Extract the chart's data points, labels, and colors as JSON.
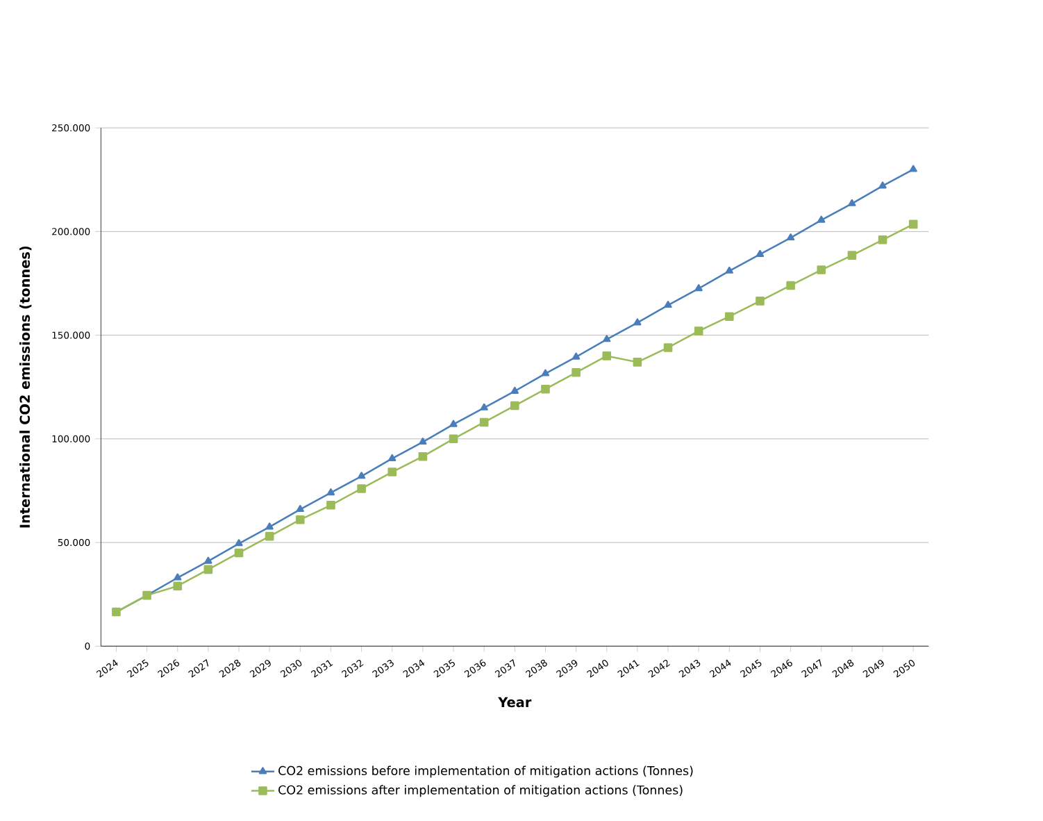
{
  "chart_data": {
    "type": "line",
    "xlabel": "Year",
    "ylabel": "International CO2 emissions (tonnes)",
    "categories": [
      "2024",
      "2025",
      "2026",
      "2027",
      "2028",
      "2029",
      "2030",
      "2031",
      "2032",
      "2033",
      "2034",
      "2035",
      "2036",
      "2037",
      "2038",
      "2039",
      "2040",
      "2041",
      "2042",
      "2043",
      "2044",
      "2045",
      "2046",
      "2047",
      "2048",
      "2049",
      "2050"
    ],
    "series": [
      {
        "name": "CO2 emissions before implementation of mitigation actions (Tonnes)",
        "color": "#4a7ebb",
        "marker": "triangle",
        "values": [
          16500,
          24500,
          33000,
          41000,
          49500,
          57500,
          66000,
          74000,
          82000,
          90500,
          98500,
          107000,
          115000,
          123000,
          131500,
          139500,
          148000,
          156000,
          164500,
          172500,
          181000,
          189000,
          197000,
          205500,
          213500,
          222000,
          230000
        ]
      },
      {
        "name": "CO2 emissions after implementation of mitigation actions (Tonnes)",
        "color": "#9bbb59",
        "marker": "square",
        "values": [
          16500,
          24500,
          29000,
          37000,
          45000,
          53000,
          61000,
          68000,
          76000,
          84000,
          91500,
          100000,
          108000,
          116000,
          124000,
          132000,
          140000,
          137000,
          144000,
          152000,
          159000,
          166500,
          174000,
          181500,
          188500,
          196000,
          203500
        ]
      }
    ],
    "ylim": [
      0,
      250000
    ],
    "yticks": [
      {
        "value": 0,
        "label": "0"
      },
      {
        "value": 50000,
        "label": "50.000"
      },
      {
        "value": 100000,
        "label": "100.000"
      },
      {
        "value": 150000,
        "label": "150.000"
      },
      {
        "value": 200000,
        "label": "200.000"
      },
      {
        "value": 250000,
        "label": "250.000"
      }
    ],
    "grid": "y",
    "legend": "bottom"
  }
}
